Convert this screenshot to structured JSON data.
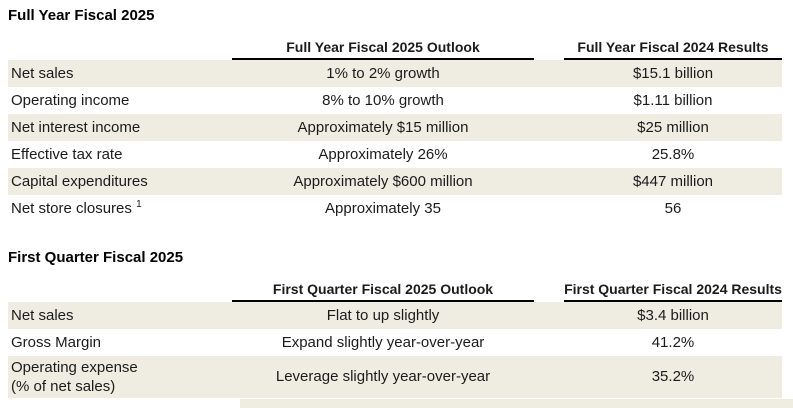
{
  "colors": {
    "row_shade": "#efede2",
    "text": "#1b1b1b",
    "header_rule": "#000000",
    "background": "#ffffff"
  },
  "tables": [
    {
      "title": "Full Year Fiscal 2025",
      "columns": [
        "",
        "Full Year Fiscal 2025 Outlook",
        "Full Year Fiscal 2024 Results"
      ],
      "rows": [
        {
          "label": "Net sales",
          "outlook": "1% to 2% growth",
          "results": "$15.1 billion"
        },
        {
          "label": "Operating income",
          "outlook": "8% to 10% growth",
          "results": "$1.11 billion"
        },
        {
          "label": "Net interest income",
          "outlook": "Approximately $15 million",
          "results": "$25 million"
        },
        {
          "label": "Effective tax rate",
          "outlook": "Approximately 26%",
          "results": "25.8%"
        },
        {
          "label": "Capital expenditures",
          "outlook": "Approximately $600 million",
          "results": "$447 million"
        },
        {
          "label": "Net store closures",
          "footnote_marker": "1",
          "outlook": "Approximately 35",
          "results": "56"
        }
      ]
    },
    {
      "title": "First Quarter Fiscal 2025",
      "columns": [
        "",
        "First Quarter Fiscal 2025 Outlook",
        "First Quarter Fiscal 2024 Results"
      ],
      "rows": [
        {
          "label": "Net sales",
          "outlook": "Flat to up slightly",
          "results": "$3.4 billion"
        },
        {
          "label": "Gross Margin",
          "outlook": "Expand slightly year-over-year",
          "results": "41.2%"
        },
        {
          "label": "Operating expense",
          "label_line2": "(% of net sales)",
          "outlook": "Leverage slightly year-over-year",
          "results": "35.2%"
        }
      ]
    }
  ]
}
